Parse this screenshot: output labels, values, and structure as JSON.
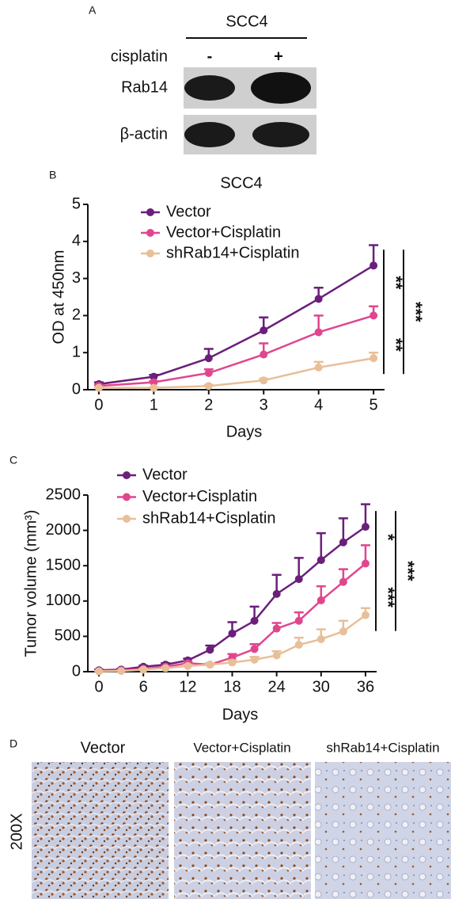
{
  "blot": {
    "label": "A",
    "cell_line": "SCC4",
    "treatment": "cisplatin",
    "conditions": [
      "-",
      "+"
    ],
    "rows": [
      "Rab14",
      "β-actin"
    ]
  },
  "chart_data": [
    {
      "type": "line",
      "label": "B",
      "title": "SCC4",
      "xlabel": "Days",
      "ylabel": "OD at 450nm",
      "x": [
        0,
        1,
        2,
        3,
        4,
        5
      ],
      "xlim": [
        -0.2,
        5.2
      ],
      "xticks": [
        0,
        1,
        2,
        3,
        4,
        5
      ],
      "ylim": [
        0,
        5
      ],
      "yticks": [
        0,
        1,
        2,
        3,
        4,
        5
      ],
      "series": [
        {
          "name": "Vector",
          "color": "#6b1f7a",
          "values": [
            0.15,
            0.35,
            0.85,
            1.6,
            2.45,
            3.35
          ],
          "errors": [
            0.05,
            0.05,
            0.25,
            0.35,
            0.3,
            0.55
          ]
        },
        {
          "name": "Vector+Cisplatin",
          "color": "#e0468e",
          "values": [
            0.1,
            0.2,
            0.45,
            0.95,
            1.55,
            2.0
          ],
          "errors": [
            0.03,
            0.03,
            0.1,
            0.3,
            0.45,
            0.25
          ]
        },
        {
          "name": "shRab14+Cisplatin",
          "color": "#e8bf98",
          "values": [
            0.05,
            0.05,
            0.1,
            0.25,
            0.6,
            0.85
          ],
          "errors": [
            0.02,
            0.02,
            0.03,
            0.05,
            0.15,
            0.15
          ]
        }
      ],
      "annotations": [
        "**",
        "**",
        "***"
      ]
    },
    {
      "type": "line",
      "label": "C",
      "xlabel": "Days",
      "ylabel": "Tumor volume (mm³)",
      "x": [
        0,
        3,
        6,
        9,
        12,
        15,
        18,
        21,
        24,
        27,
        30,
        33,
        36
      ],
      "xlim": [
        -1.5,
        37.5
      ],
      "xticks": [
        0,
        6,
        12,
        18,
        24,
        30,
        36
      ],
      "ylim": [
        0,
        2500
      ],
      "yticks": [
        0,
        500,
        1000,
        1500,
        2000,
        2500
      ],
      "series": [
        {
          "name": "Vector",
          "color": "#6b1f7a",
          "values": [
            20,
            30,
            70,
            100,
            160,
            310,
            540,
            720,
            1100,
            1310,
            1580,
            1830,
            2050
          ],
          "errors": [
            10,
            10,
            15,
            20,
            25,
            60,
            160,
            200,
            270,
            300,
            380,
            340,
            320
          ]
        },
        {
          "name": "Vector+Cisplatin",
          "color": "#e0468e",
          "values": [
            10,
            20,
            40,
            70,
            120,
            100,
            200,
            320,
            610,
            720,
            1010,
            1270,
            1530
          ],
          "errors": [
            5,
            5,
            10,
            10,
            20,
            20,
            50,
            70,
            80,
            120,
            200,
            180,
            260
          ]
        },
        {
          "name": "shRab14+Cisplatin",
          "color": "#e8bf98",
          "values": [
            5,
            10,
            30,
            50,
            80,
            100,
            130,
            170,
            230,
            380,
            460,
            570,
            800
          ],
          "errors": [
            5,
            5,
            10,
            10,
            20,
            20,
            30,
            40,
            60,
            100,
            140,
            150,
            100
          ]
        }
      ],
      "annotations": [
        "*",
        "***",
        "***"
      ]
    }
  ],
  "histology": {
    "label": "D",
    "magnification": "200X",
    "groups": [
      "Vector",
      "Vector+Cisplatin",
      "shRab14+Cisplatin"
    ]
  }
}
